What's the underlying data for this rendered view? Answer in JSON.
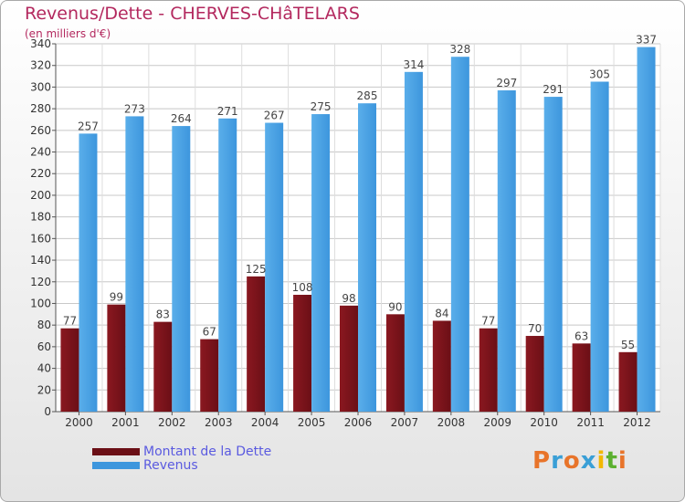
{
  "title": "Revenus/Dette - CHERVES-CHâTELARS",
  "subtitle": "(en milliers d'€)",
  "brand": {
    "text": "Proxiti",
    "letters": [
      {
        "ch": "P",
        "color": "#e8742a"
      },
      {
        "ch": "r",
        "color": "#3a9fd6"
      },
      {
        "ch": "o",
        "color": "#e8742a"
      },
      {
        "ch": "x",
        "color": "#3a9fd6"
      },
      {
        "ch": "i",
        "color": "#f2b800"
      },
      {
        "ch": "t",
        "color": "#5bb030"
      },
      {
        "ch": "i",
        "color": "#e8742a"
      }
    ]
  },
  "colors": {
    "dette": "#6b0f16",
    "revenus": "#3d96dd",
    "title": "#b3285e",
    "legend_text": "#5a5ae0"
  },
  "chart_data": {
    "type": "bar",
    "categories": [
      "2000",
      "2001",
      "2002",
      "2003",
      "2004",
      "2005",
      "2006",
      "2007",
      "2008",
      "2009",
      "2010",
      "2011",
      "2012"
    ],
    "series": [
      {
        "name": "Montant de la Dette",
        "values": [
          77,
          99,
          83,
          67,
          125,
          108,
          98,
          90,
          84,
          77,
          70,
          63,
          55
        ]
      },
      {
        "name": "Revenus",
        "values": [
          257,
          273,
          264,
          271,
          267,
          275,
          285,
          314,
          328,
          297,
          291,
          305,
          337
        ]
      }
    ],
    "ylim": [
      0,
      340
    ],
    "ytick_step": 20,
    "grid": true,
    "legend_position": "bottom-left"
  }
}
